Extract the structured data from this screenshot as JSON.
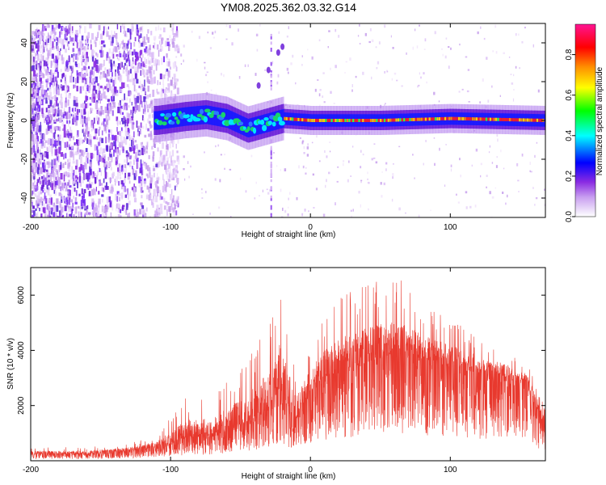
{
  "figure": {
    "title": "YM08.2025.362.03.32.G14"
  },
  "chart_data": [
    {
      "type": "heatmap",
      "title": "YM08.2025.362.03.32.G14",
      "xlabel": "Height of straight line (km)",
      "ylabel": "Frequency (Hz)",
      "xlim": [
        -200,
        168
      ],
      "ylim": [
        -50,
        50
      ],
      "x_ticks": [
        -200,
        -100,
        0,
        100
      ],
      "y_ticks": [
        -40,
        -20,
        0,
        20,
        40
      ],
      "x_tick_labels": [
        "-200",
        "-100",
        "0",
        "100"
      ],
      "y_tick_labels": [
        "-40",
        "-20",
        "0",
        "20",
        "40"
      ],
      "colorbar": {
        "label": "Normalized spectral amplitude",
        "range": [
          0,
          0.95
        ],
        "ticks": [
          0.0,
          0.2,
          0.4,
          0.6,
          0.8
        ],
        "tick_labels": [
          "0.0",
          "0.2",
          "0.4",
          "0.6",
          "0.8"
        ],
        "colormap": [
          "#ffffff",
          "#8a2be2",
          "#0000ff",
          "#00ffff",
          "#00ff00",
          "#ffff00",
          "#ff8c00",
          "#ff0000",
          "#ff1493"
        ]
      },
      "features": {
        "noise_region_x": [
          -200,
          -115
        ],
        "carrier_track": [
          {
            "x": -110,
            "y": 0
          },
          {
            "x": -90,
            "y": 2
          },
          {
            "x": -75,
            "y": 3
          },
          {
            "x": -60,
            "y": 1
          },
          {
            "x": -45,
            "y": -4
          },
          {
            "x": -35,
            "y": -2
          },
          {
            "x": -20,
            "y": 1
          },
          {
            "x": 0,
            "y": 0
          },
          {
            "x": 50,
            "y": 0
          },
          {
            "x": 100,
            "y": 1
          },
          {
            "x": 168,
            "y": 0
          }
        ],
        "vertical_stripe_x": -28,
        "side_artifact": [
          {
            "x": -37,
            "y": 18
          },
          {
            "x": -30,
            "y": 26
          },
          {
            "x": -23,
            "y": 35
          },
          {
            "x": -20,
            "y": 38
          }
        ]
      }
    },
    {
      "type": "line",
      "xlabel": "Height of straight line (km)",
      "ylabel": "SNR (10 * v/v)",
      "xlim": [
        -200,
        168
      ],
      "ylim": [
        0,
        7000
      ],
      "x_ticks": [
        -200,
        -100,
        0,
        100
      ],
      "y_ticks": [
        2000,
        4000,
        6000
      ],
      "x_tick_labels": [
        "-200",
        "-100",
        "0",
        "100"
      ],
      "y_tick_labels": [
        "2000",
        "4000",
        "6000"
      ],
      "color": "#e8392e",
      "envelope": [
        {
          "x": -200,
          "mean": 250,
          "peak": 500
        },
        {
          "x": -160,
          "mean": 250,
          "peak": 500
        },
        {
          "x": -130,
          "mean": 350,
          "peak": 650
        },
        {
          "x": -110,
          "mean": 500,
          "peak": 900
        },
        {
          "x": -90,
          "mean": 800,
          "peak": 2300
        },
        {
          "x": -70,
          "mean": 900,
          "peak": 2300
        },
        {
          "x": -50,
          "mean": 1300,
          "peak": 3400
        },
        {
          "x": -30,
          "mean": 1800,
          "peak": 5000
        },
        {
          "x": -23,
          "mean": 2500,
          "peak": 6600
        },
        {
          "x": -10,
          "mean": 1500,
          "peak": 3500
        },
        {
          "x": 0,
          "mean": 2500,
          "peak": 4300
        },
        {
          "x": 10,
          "mean": 3000,
          "peak": 5300
        },
        {
          "x": 25,
          "mean": 3300,
          "peak": 6100
        },
        {
          "x": 45,
          "mean": 3600,
          "peak": 6500
        },
        {
          "x": 60,
          "mean": 3900,
          "peak": 6900
        },
        {
          "x": 80,
          "mean": 3700,
          "peak": 5600
        },
        {
          "x": 100,
          "mean": 3400,
          "peak": 5200
        },
        {
          "x": 120,
          "mean": 3200,
          "peak": 4600
        },
        {
          "x": 140,
          "mean": 3000,
          "peak": 4100
        },
        {
          "x": 155,
          "mean": 2700,
          "peak": 3700
        },
        {
          "x": 168,
          "mean": 1100,
          "peak": 2000
        }
      ]
    }
  ]
}
